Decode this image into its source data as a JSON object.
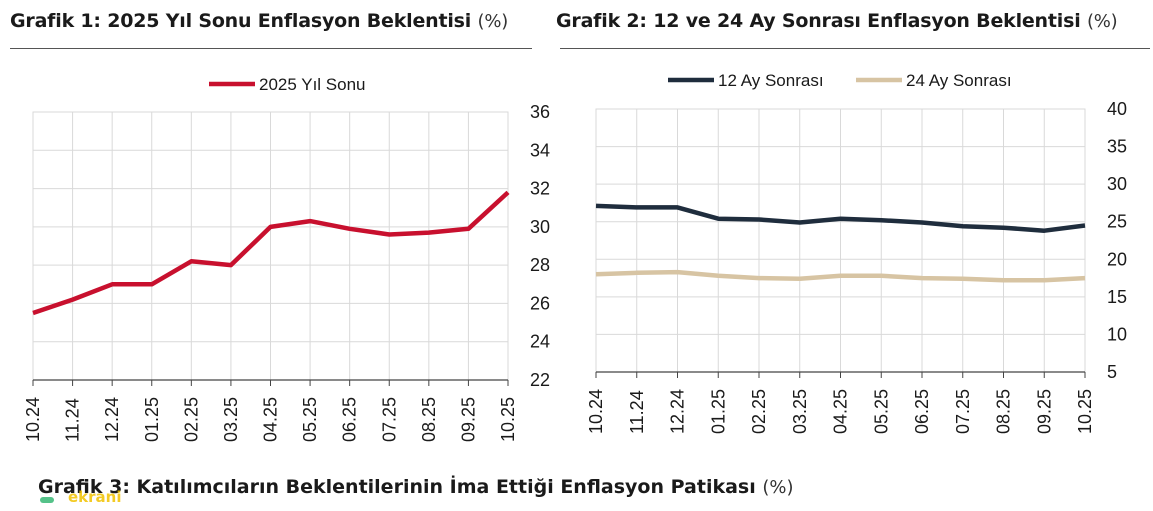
{
  "panels": {
    "chart1_title": "Grafik 1: 2025 Yıl Sonu Enflasyon Beklentisi",
    "chart1_unit": "(%)",
    "chart2_title": "Grafik 2: 12 ve 24 Ay Sonrası Enflasyon Beklentisi",
    "chart2_unit": "(%)",
    "chart3_title": "Grafik 3: Katılımcıların Beklentilerinin İma Ettiği Enflasyon Patikası",
    "chart3_unit": "(%)"
  },
  "watermark": "ekrani",
  "colors": {
    "red": "#c8102e",
    "navy": "#1f2d3d",
    "beige": "#d7c4a3",
    "grid": "#d9d9d9",
    "axis": "#444444"
  },
  "chart_data": [
    {
      "type": "line",
      "title": "Grafik 1: 2025 Yıl Sonu Enflasyon Beklentisi",
      "categories": [
        "10.24",
        "11.24",
        "12.24",
        "01.25",
        "02.25",
        "03.25",
        "04.25",
        "05.25",
        "06.25",
        "07.25",
        "08.25",
        "09.25",
        "10.25"
      ],
      "series": [
        {
          "name": "2025 Yıl Sonu",
          "values": [
            25.5,
            26.2,
            27.0,
            27.0,
            28.2,
            28.0,
            30.0,
            30.3,
            29.9,
            29.6,
            29.7,
            29.9,
            31.8
          ]
        }
      ],
      "yticks": [
        "36",
        "34",
        "32",
        "30",
        "28",
        "26",
        "24",
        "22"
      ],
      "ylim": [
        22,
        36
      ],
      "y_axis_side": "right",
      "grid": true,
      "legend": "top-center"
    },
    {
      "type": "line",
      "title": "Grafik 2: 12 ve 24 Ay Sonrası Enflasyon Beklentisi",
      "categories": [
        "10.24",
        "11.24",
        "12.24",
        "01.25",
        "02.25",
        "03.25",
        "04.25",
        "05.25",
        "06.25",
        "07.25",
        "08.25",
        "09.25",
        "10.25"
      ],
      "series": [
        {
          "name": "12 Ay Sonrası",
          "values": [
            27.1,
            26.9,
            26.9,
            25.4,
            25.3,
            24.9,
            25.4,
            25.2,
            24.9,
            24.4,
            24.2,
            23.8,
            24.5
          ]
        },
        {
          "name": "24 Ay Sonrası",
          "values": [
            18.0,
            18.2,
            18.3,
            17.8,
            17.5,
            17.4,
            17.8,
            17.8,
            17.5,
            17.4,
            17.2,
            17.2,
            17.5
          ]
        }
      ],
      "yticks": [
        "40",
        "35",
        "30",
        "25",
        "20",
        "15",
        "10",
        "5"
      ],
      "ylim": [
        5,
        40
      ],
      "y_axis_side": "right",
      "grid": true,
      "legend": "top-center"
    }
  ]
}
